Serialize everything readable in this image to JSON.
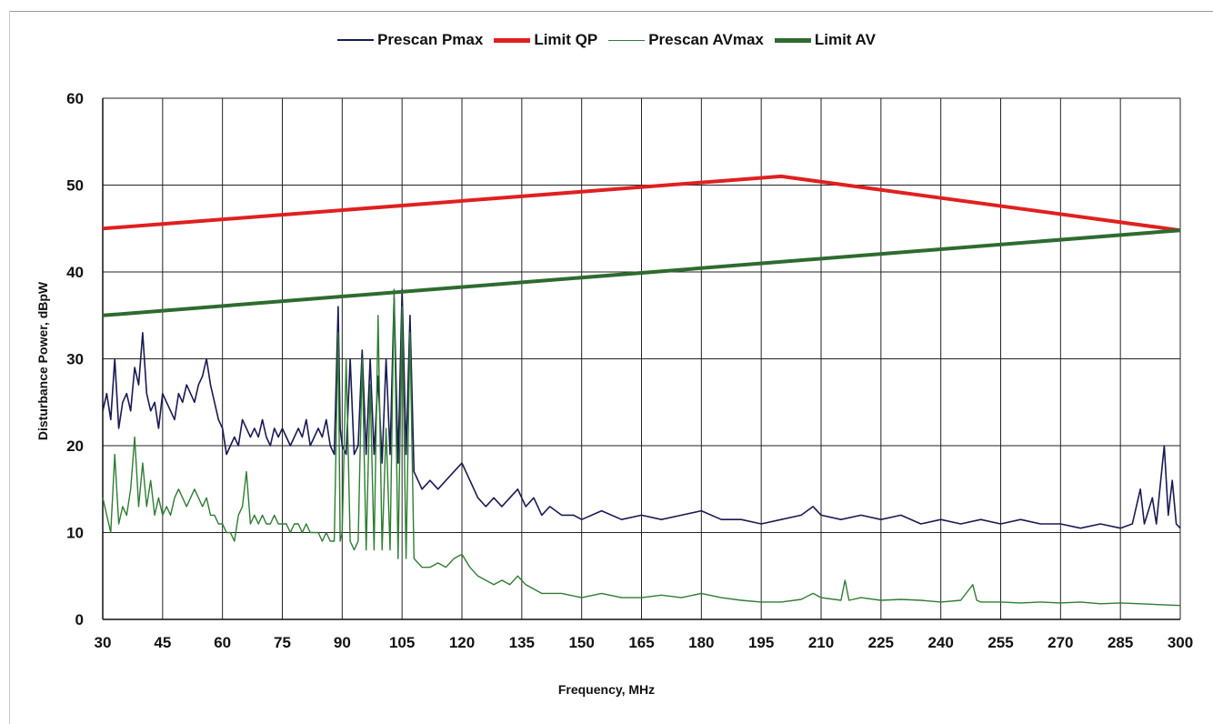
{
  "chart_data": {
    "type": "line",
    "title": "",
    "xlabel": "Frequency, MHz",
    "ylabel": "Disturbance Power, dBpW",
    "xlim": [
      30,
      300
    ],
    "ylim": [
      0,
      60
    ],
    "xticks": [
      30,
      45,
      60,
      75,
      90,
      105,
      120,
      135,
      150,
      165,
      180,
      195,
      210,
      225,
      240,
      255,
      270,
      285,
      300
    ],
    "yticks": [
      0,
      10,
      20,
      30,
      40,
      50,
      60
    ],
    "grid": true,
    "legend_position": "top-center",
    "series": [
      {
        "name": "Prescan Pmax",
        "color": "#1a1a55",
        "points": [
          [
            30,
            24
          ],
          [
            31,
            26
          ],
          [
            32,
            23
          ],
          [
            33,
            30
          ],
          [
            34,
            22
          ],
          [
            35,
            25
          ],
          [
            36,
            26
          ],
          [
            37,
            24
          ],
          [
            38,
            29
          ],
          [
            39,
            27
          ],
          [
            40,
            33
          ],
          [
            41,
            26
          ],
          [
            42,
            24
          ],
          [
            43,
            25
          ],
          [
            44,
            22
          ],
          [
            45,
            26
          ],
          [
            46,
            25
          ],
          [
            47,
            24
          ],
          [
            48,
            23
          ],
          [
            49,
            26
          ],
          [
            50,
            25
          ],
          [
            51,
            27
          ],
          [
            52,
            26
          ],
          [
            53,
            25
          ],
          [
            54,
            27
          ],
          [
            55,
            28
          ],
          [
            56,
            30
          ],
          [
            57,
            27
          ],
          [
            58,
            25
          ],
          [
            59,
            23
          ],
          [
            60,
            22
          ],
          [
            61,
            19
          ],
          [
            62,
            20
          ],
          [
            63,
            21
          ],
          [
            64,
            20
          ],
          [
            65,
            23
          ],
          [
            66,
            22
          ],
          [
            67,
            21
          ],
          [
            68,
            22
          ],
          [
            69,
            21
          ],
          [
            70,
            23
          ],
          [
            71,
            21
          ],
          [
            72,
            20
          ],
          [
            73,
            22
          ],
          [
            74,
            21
          ],
          [
            75,
            22
          ],
          [
            76,
            21
          ],
          [
            77,
            20
          ],
          [
            78,
            21
          ],
          [
            79,
            22
          ],
          [
            80,
            21
          ],
          [
            81,
            23
          ],
          [
            82,
            20
          ],
          [
            83,
            21
          ],
          [
            84,
            22
          ],
          [
            85,
            21
          ],
          [
            86,
            23
          ],
          [
            87,
            20
          ],
          [
            88,
            19
          ],
          [
            89,
            36
          ],
          [
            89.5,
            22
          ],
          [
            90,
            20
          ],
          [
            91,
            19
          ],
          [
            92,
            30
          ],
          [
            93,
            19
          ],
          [
            94,
            20
          ],
          [
            95,
            31
          ],
          [
            96,
            19
          ],
          [
            97,
            30
          ],
          [
            98,
            19
          ],
          [
            99,
            28
          ],
          [
            100,
            18
          ],
          [
            101,
            30
          ],
          [
            102,
            19
          ],
          [
            103,
            37
          ],
          [
            104,
            18
          ],
          [
            105,
            38
          ],
          [
            106,
            19
          ],
          [
            107,
            35
          ],
          [
            108,
            17
          ],
          [
            109,
            16
          ],
          [
            110,
            15
          ],
          [
            112,
            16
          ],
          [
            114,
            15
          ],
          [
            116,
            16
          ],
          [
            118,
            17
          ],
          [
            120,
            18
          ],
          [
            122,
            16
          ],
          [
            124,
            14
          ],
          [
            126,
            13
          ],
          [
            128,
            14
          ],
          [
            130,
            13
          ],
          [
            132,
            14
          ],
          [
            134,
            15
          ],
          [
            136,
            13
          ],
          [
            138,
            14
          ],
          [
            140,
            12
          ],
          [
            142,
            13
          ],
          [
            145,
            12
          ],
          [
            148,
            12
          ],
          [
            150,
            11.5
          ],
          [
            155,
            12.5
          ],
          [
            160,
            11.5
          ],
          [
            165,
            12
          ],
          [
            170,
            11.5
          ],
          [
            175,
            12
          ],
          [
            180,
            12.5
          ],
          [
            185,
            11.5
          ],
          [
            190,
            11.5
          ],
          [
            195,
            11
          ],
          [
            200,
            11.5
          ],
          [
            205,
            12
          ],
          [
            208,
            13
          ],
          [
            210,
            12
          ],
          [
            215,
            11.5
          ],
          [
            220,
            12
          ],
          [
            225,
            11.5
          ],
          [
            230,
            12
          ],
          [
            235,
            11
          ],
          [
            240,
            11.5
          ],
          [
            245,
            11
          ],
          [
            250,
            11.5
          ],
          [
            255,
            11
          ],
          [
            260,
            11.5
          ],
          [
            265,
            11
          ],
          [
            270,
            11
          ],
          [
            275,
            10.5
          ],
          [
            280,
            11
          ],
          [
            285,
            10.5
          ],
          [
            288,
            11
          ],
          [
            290,
            15
          ],
          [
            291,
            11
          ],
          [
            293,
            14
          ],
          [
            294,
            11
          ],
          [
            296,
            20
          ],
          [
            297,
            12
          ],
          [
            298,
            16
          ],
          [
            299,
            11
          ],
          [
            300,
            10.5
          ]
        ]
      },
      {
        "name": "Limit QP",
        "color": "#e02020",
        "points": [
          [
            30,
            45
          ],
          [
            200,
            51
          ],
          [
            300,
            44.8
          ]
        ]
      },
      {
        "name": "Prescan AVmax",
        "color": "#2e7d32",
        "points": [
          [
            30,
            14
          ],
          [
            31,
            12
          ],
          [
            32,
            10
          ],
          [
            33,
            19
          ],
          [
            34,
            11
          ],
          [
            35,
            13
          ],
          [
            36,
            12
          ],
          [
            37,
            15
          ],
          [
            38,
            21
          ],
          [
            39,
            13
          ],
          [
            40,
            18
          ],
          [
            41,
            13
          ],
          [
            42,
            16
          ],
          [
            43,
            12
          ],
          [
            44,
            14
          ],
          [
            45,
            12
          ],
          [
            46,
            13
          ],
          [
            47,
            12
          ],
          [
            48,
            14
          ],
          [
            49,
            15
          ],
          [
            50,
            14
          ],
          [
            51,
            13
          ],
          [
            52,
            14
          ],
          [
            53,
            15
          ],
          [
            54,
            14
          ],
          [
            55,
            13
          ],
          [
            56,
            14
          ],
          [
            57,
            12
          ],
          [
            58,
            12
          ],
          [
            59,
            11
          ],
          [
            60,
            11
          ],
          [
            61,
            10
          ],
          [
            62,
            10
          ],
          [
            63,
            9
          ],
          [
            64,
            12
          ],
          [
            65,
            13
          ],
          [
            66,
            17
          ],
          [
            67,
            11
          ],
          [
            68,
            12
          ],
          [
            69,
            11
          ],
          [
            70,
            12
          ],
          [
            71,
            11
          ],
          [
            72,
            11
          ],
          [
            73,
            12
          ],
          [
            74,
            11
          ],
          [
            75,
            11
          ],
          [
            76,
            11
          ],
          [
            77,
            10
          ],
          [
            78,
            11
          ],
          [
            79,
            11
          ],
          [
            80,
            10
          ],
          [
            81,
            11
          ],
          [
            82,
            10
          ],
          [
            83,
            10
          ],
          [
            84,
            10
          ],
          [
            85,
            9
          ],
          [
            86,
            10
          ],
          [
            87,
            9
          ],
          [
            88,
            9
          ],
          [
            89,
            33
          ],
          [
            89.5,
            9
          ],
          [
            90,
            10
          ],
          [
            91,
            30
          ],
          [
            92,
            9
          ],
          [
            93,
            8
          ],
          [
            94,
            9
          ],
          [
            95,
            30
          ],
          [
            96,
            8
          ],
          [
            97,
            27
          ],
          [
            98,
            8
          ],
          [
            99,
            35
          ],
          [
            100,
            8
          ],
          [
            101,
            22
          ],
          [
            102,
            8
          ],
          [
            103,
            38
          ],
          [
            104,
            7
          ],
          [
            105,
            36
          ],
          [
            106,
            7
          ],
          [
            107,
            33
          ],
          [
            108,
            7
          ],
          [
            110,
            6
          ],
          [
            112,
            6
          ],
          [
            114,
            6.5
          ],
          [
            116,
            6
          ],
          [
            118,
            7
          ],
          [
            120,
            7.5
          ],
          [
            122,
            6
          ],
          [
            124,
            5
          ],
          [
            126,
            4.5
          ],
          [
            128,
            4
          ],
          [
            130,
            4.5
          ],
          [
            132,
            4
          ],
          [
            134,
            5
          ],
          [
            136,
            4
          ],
          [
            138,
            3.5
          ],
          [
            140,
            3
          ],
          [
            145,
            3
          ],
          [
            150,
            2.5
          ],
          [
            155,
            3
          ],
          [
            160,
            2.5
          ],
          [
            165,
            2.5
          ],
          [
            170,
            2.8
          ],
          [
            175,
            2.5
          ],
          [
            180,
            3
          ],
          [
            185,
            2.5
          ],
          [
            190,
            2.2
          ],
          [
            195,
            2
          ],
          [
            200,
            2
          ],
          [
            205,
            2.3
          ],
          [
            208,
            3
          ],
          [
            210,
            2.5
          ],
          [
            215,
            2.2
          ],
          [
            216,
            4.5
          ],
          [
            217,
            2.2
          ],
          [
            220,
            2.5
          ],
          [
            225,
            2.2
          ],
          [
            230,
            2.3
          ],
          [
            235,
            2.2
          ],
          [
            240,
            2
          ],
          [
            245,
            2.2
          ],
          [
            248,
            4
          ],
          [
            249,
            2.2
          ],
          [
            250,
            2
          ],
          [
            255,
            2
          ],
          [
            260,
            1.9
          ],
          [
            265,
            2
          ],
          [
            270,
            1.9
          ],
          [
            275,
            2
          ],
          [
            280,
            1.8
          ],
          [
            285,
            1.9
          ],
          [
            290,
            1.8
          ],
          [
            295,
            1.7
          ],
          [
            300,
            1.6
          ]
        ]
      },
      {
        "name": "Limit AV",
        "color": "#2e6b30",
        "points": [
          [
            30,
            35
          ],
          [
            300,
            44.8
          ]
        ]
      }
    ]
  }
}
